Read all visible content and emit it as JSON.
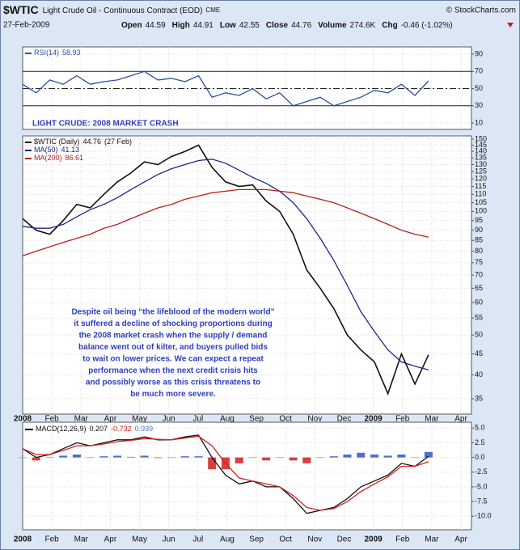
{
  "header": {
    "symbol": "$WTIC",
    "name": "Light Crude Oil - Continuous Contract (EOD)",
    "exchange": "CME",
    "source": "© StockCharts.com",
    "date": "27-Feb-2009",
    "quotes": [
      {
        "label": "Open",
        "value": "44.59"
      },
      {
        "label": "High",
        "value": "44.91"
      },
      {
        "label": "Low",
        "value": "42.55"
      },
      {
        "label": "Close",
        "value": "44.76"
      },
      {
        "label": "Volume",
        "value": "274.6K"
      },
      {
        "label": "Chg",
        "value": "-0.46 (-1.02%)"
      }
    ]
  },
  "title": "LIGHT CRUDE: 2008 MARKET CRASH",
  "time_axis": {
    "labels": [
      "2008",
      "Feb",
      "Mar",
      "Apr",
      "May",
      "Jun",
      "Jul",
      "Aug",
      "Sep",
      "Oct",
      "Nov",
      "Dec",
      "2009",
      "Feb",
      "Mar",
      "Apr"
    ]
  },
  "chart_data": [
    {
      "type": "line",
      "ylim": [
        2.5,
        98.5
      ],
      "yticks": [
        90,
        70,
        50,
        30,
        10
      ],
      "levels": [
        70,
        50,
        30
      ],
      "grid": true,
      "series": [
        {
          "name": "RSI(14)",
          "color": "#2a4fa0",
          "values": [
            55,
            45,
            60,
            55,
            65,
            55,
            58,
            60,
            65,
            70,
            60,
            62,
            58,
            65,
            40,
            45,
            42,
            50,
            38,
            45,
            30,
            35,
            40,
            30,
            35,
            40,
            48,
            45,
            55,
            42,
            58.93
          ]
        }
      ]
    },
    {
      "type": "line",
      "log_scale": true,
      "ylim": [
        32.1,
        152.7
      ],
      "grid": true,
      "yticks": [
        150,
        145,
        140,
        135,
        130,
        125,
        120,
        115,
        110,
        105,
        100,
        95,
        90,
        85,
        80,
        75,
        70,
        65,
        60,
        55,
        50,
        45,
        40,
        35
      ],
      "date_label": "(27 Feb)",
      "annotation": [
        "Despite oil being “the lifeblood of the modern world”",
        "it suffered a decline of shocking proportions during",
        "the 2008 market crash when the supply / demand",
        "balance went out of kilter, and buyers pulled bids",
        "to wait on lower prices. We can expect a repeat",
        "performance when the next credit crisis hits",
        "and possibly worse as this crisis threatens to",
        "be much more severe."
      ],
      "series": [
        {
          "name": "$WTIC (Daily)",
          "color": "#111111",
          "values": [
            96,
            90,
            88,
            95,
            104,
            102,
            110,
            118,
            124,
            132,
            130,
            136,
            140,
            145,
            128,
            118,
            115,
            116,
            106,
            100,
            88,
            72,
            65,
            58,
            50,
            46,
            43,
            36,
            45,
            38,
            44.76
          ]
        },
        {
          "name": "MA(50)",
          "color": "#23238c",
          "values": [
            92,
            91,
            91,
            93,
            97,
            101,
            104,
            108,
            113,
            118,
            123,
            127,
            130,
            133,
            134,
            131,
            126,
            121,
            117,
            112,
            105,
            96,
            86,
            76,
            66,
            57,
            51,
            46,
            43,
            42,
            41.13
          ]
        },
        {
          "name": "MA(200)",
          "color": "#b22222",
          "values": [
            78,
            80,
            82,
            84,
            86,
            88,
            91,
            93,
            96,
            99,
            102,
            104,
            107,
            109,
            111,
            112,
            113,
            113,
            113,
            112,
            111,
            109,
            107,
            105,
            102,
            99,
            96,
            93,
            90,
            88,
            86.61
          ]
        }
      ]
    },
    {
      "type": "line",
      "ylim": [
        -12.3,
        6
      ],
      "grid": true,
      "legend_title": "MACD(12,26,9)",
      "yticks": [
        {
          "value": 5,
          "label": "5.0"
        },
        2.5,
        {
          "value": 0,
          "label": "0.0"
        },
        -2.5,
        {
          "value": -5,
          "label": "-5.0"
        },
        -7.5,
        {
          "value": -10,
          "label": "-10.0"
        }
      ],
      "series": [
        {
          "color": "#111111",
          "values": [
            1.5,
            0,
            0.5,
            1.5,
            2.5,
            2,
            2.5,
            3,
            3,
            3.5,
            3,
            3,
            3.5,
            3.8,
            0,
            -3,
            -4.5,
            -4,
            -5,
            -5,
            -7,
            -9.5,
            -9,
            -8.5,
            -7,
            -5,
            -4,
            -3,
            -1,
            -1.5,
            0.207
          ]
        },
        {
          "color": "#d42020",
          "values": [
            1.5,
            0.5,
            0.5,
            1.2,
            2,
            2,
            2.3,
            2.7,
            2.9,
            3.2,
            3.1,
            3,
            3.3,
            3.6,
            2,
            -1,
            -3.5,
            -4,
            -4.5,
            -5,
            -6.5,
            -8.5,
            -9,
            -8.7,
            -7.5,
            -5.8,
            -4.5,
            -3.3,
            -1.5,
            -1.5,
            -0.732
          ]
        },
        {
          "type": "bar",
          "color": "#4a6fd0",
          "values": [
            0,
            -0.5,
            0,
            0.3,
            0.5,
            0,
            0.2,
            0.3,
            0.1,
            0.3,
            -0.1,
            0,
            0.2,
            0.2,
            -2,
            -2,
            -1,
            0,
            -0.5,
            0,
            -0.5,
            -1,
            0,
            0.2,
            0.5,
            0.8,
            0.5,
            0.3,
            0.5,
            0,
            0.939
          ]
        }
      ]
    }
  ]
}
